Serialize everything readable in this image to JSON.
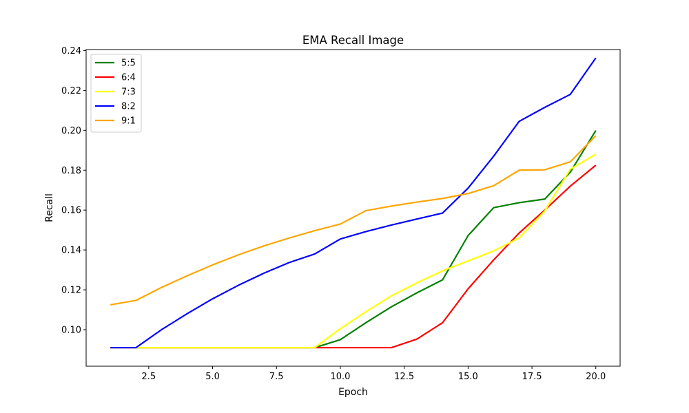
{
  "chart_data": {
    "type": "line",
    "title": "EMA Recall Image",
    "xlabel": "Epoch",
    "ylabel": "Recall",
    "xlim": [
      0.05,
      20.95
    ],
    "ylim": [
      0.0817,
      0.2405
    ],
    "xticks": [
      2.5,
      5.0,
      7.5,
      10.0,
      12.5,
      15.0,
      17.5,
      20.0
    ],
    "xtick_labels": [
      "2.5",
      "5.0",
      "7.5",
      "10.0",
      "12.5",
      "15.0",
      "17.5",
      "20.0"
    ],
    "yticks": [
      0.1,
      0.12,
      0.14,
      0.16,
      0.18,
      0.2,
      0.22,
      0.24
    ],
    "ytick_labels": [
      "0.10",
      "0.12",
      "0.14",
      "0.16",
      "0.18",
      "0.20",
      "0.22",
      "0.24"
    ],
    "grid": false,
    "legend_position": "upper-left",
    "x": [
      1,
      2,
      3,
      4,
      5,
      6,
      7,
      8,
      9,
      10,
      11,
      12,
      13,
      14,
      15,
      16,
      17,
      18,
      19,
      20
    ],
    "series": [
      {
        "name": "5:5",
        "color": "#008000",
        "values": [
          0.091,
          0.091,
          0.091,
          0.091,
          0.091,
          0.091,
          0.091,
          0.091,
          0.091,
          0.095,
          0.1035,
          0.1115,
          0.1185,
          0.125,
          0.1472,
          0.1612,
          0.1637,
          0.1655,
          0.179,
          0.1999
        ]
      },
      {
        "name": "6:4",
        "color": "#ff0000",
        "values": [
          0.091,
          0.091,
          0.091,
          0.091,
          0.091,
          0.091,
          0.091,
          0.091,
          0.091,
          0.091,
          0.091,
          0.091,
          0.0953,
          0.1035,
          0.1205,
          0.135,
          0.1485,
          0.16,
          0.172,
          0.1825
        ]
      },
      {
        "name": "7:3",
        "color": "#ffff00",
        "values": [
          0.091,
          0.091,
          0.091,
          0.091,
          0.091,
          0.091,
          0.091,
          0.091,
          0.091,
          0.1005,
          0.109,
          0.117,
          0.1235,
          0.1295,
          0.1345,
          0.1395,
          0.146,
          0.1595,
          0.1805,
          0.188
        ]
      },
      {
        "name": "8:2",
        "color": "#0000ff",
        "values": [
          0.091,
          0.091,
          0.1,
          0.108,
          0.1155,
          0.1222,
          0.1283,
          0.1337,
          0.138,
          0.1455,
          0.1492,
          0.1525,
          0.1555,
          0.1585,
          0.171,
          0.187,
          0.2045,
          0.2115,
          0.218,
          0.2363
        ]
      },
      {
        "name": "9:1",
        "color": "#ffa500",
        "values": [
          0.1125,
          0.1147,
          0.1212,
          0.127,
          0.1325,
          0.1375,
          0.142,
          0.146,
          0.1497,
          0.153,
          0.1597,
          0.162,
          0.164,
          0.1658,
          0.1683,
          0.1722,
          0.18,
          0.1802,
          0.1842,
          0.1973
        ]
      }
    ]
  }
}
